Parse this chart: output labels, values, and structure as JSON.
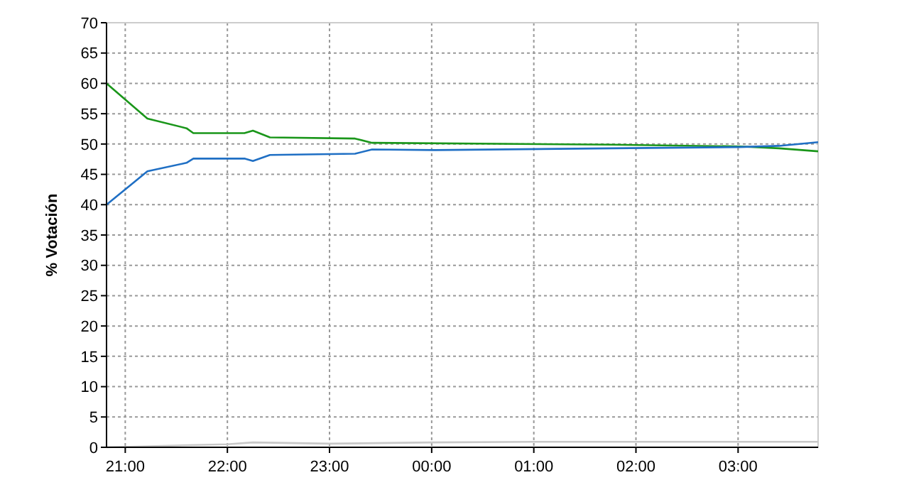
{
  "chart_data": {
    "type": "line",
    "ylabel": "% Votación",
    "xlim": [
      "2000-01-01T20:49",
      "2000-01-02T03:47"
    ],
    "xticks": [
      {
        "value": "2000-01-01T21:00",
        "label": "21:00"
      },
      {
        "value": "2000-01-01T22:00",
        "label": "22:00"
      },
      {
        "value": "2000-01-01T23:00",
        "label": "23:00"
      },
      {
        "value": "2000-01-02T00:00",
        "label": "00:00"
      },
      {
        "value": "2000-01-02T01:00",
        "label": "01:00"
      },
      {
        "value": "2000-01-02T02:00",
        "label": "02:00"
      },
      {
        "value": "2000-01-02T03:00",
        "label": "03:00"
      }
    ],
    "ylim": [
      0,
      70
    ],
    "yticks": [
      0,
      5,
      10,
      15,
      20,
      25,
      30,
      35,
      40,
      45,
      50,
      55,
      60,
      65,
      70
    ],
    "grid": true,
    "marker": "none",
    "line_style": "solid",
    "series": [
      {
        "color": "#1a961a",
        "x": [
          "2000-01-01T20:49",
          "2000-01-01T21:13",
          "2000-01-01T21:36",
          "2000-01-01T21:40",
          "2000-01-01T22:10",
          "2000-01-01T22:15",
          "2000-01-01T22:25",
          "2000-01-01T23:15",
          "2000-01-01T23:25",
          "2000-01-02T01:46",
          "2000-01-02T03:01",
          "2000-01-02T03:24",
          "2000-01-02T03:47"
        ],
        "values": [
          60,
          54.2,
          52.6,
          51.8,
          51.8,
          52.2,
          51.1,
          50.9,
          50.2,
          49.9,
          49.6,
          49.3,
          48.8
        ]
      },
      {
        "color": "#1f6fc4",
        "x": [
          "2000-01-01T20:49",
          "2000-01-01T21:13",
          "2000-01-01T21:36",
          "2000-01-01T21:40",
          "2000-01-01T22:10",
          "2000-01-01T22:15",
          "2000-01-01T22:25",
          "2000-01-01T23:15",
          "2000-01-01T23:25",
          "2000-01-02T00:02",
          "2000-01-02T01:46",
          "2000-01-02T03:01",
          "2000-01-02T03:24",
          "2000-01-02T03:47"
        ],
        "values": [
          40,
          45.5,
          46.9,
          47.6,
          47.6,
          47.2,
          48.2,
          48.4,
          49.1,
          49,
          49.3,
          49.5,
          49.7,
          50.3
        ]
      },
      {
        "color": "#c8c8c8",
        "x": [
          "2000-01-01T20:49",
          "2000-01-01T21:30",
          "2000-01-01T22:00",
          "2000-01-01T22:15",
          "2000-01-01T23:00",
          "2000-01-02T00:00",
          "2000-01-02T01:00",
          "2000-01-02T02:00",
          "2000-01-02T03:00",
          "2000-01-02T03:47"
        ],
        "values": [
          0,
          0.3,
          0.5,
          0.8,
          0.6,
          0.8,
          0.9,
          0.9,
          0.9,
          0.9
        ]
      }
    ]
  }
}
